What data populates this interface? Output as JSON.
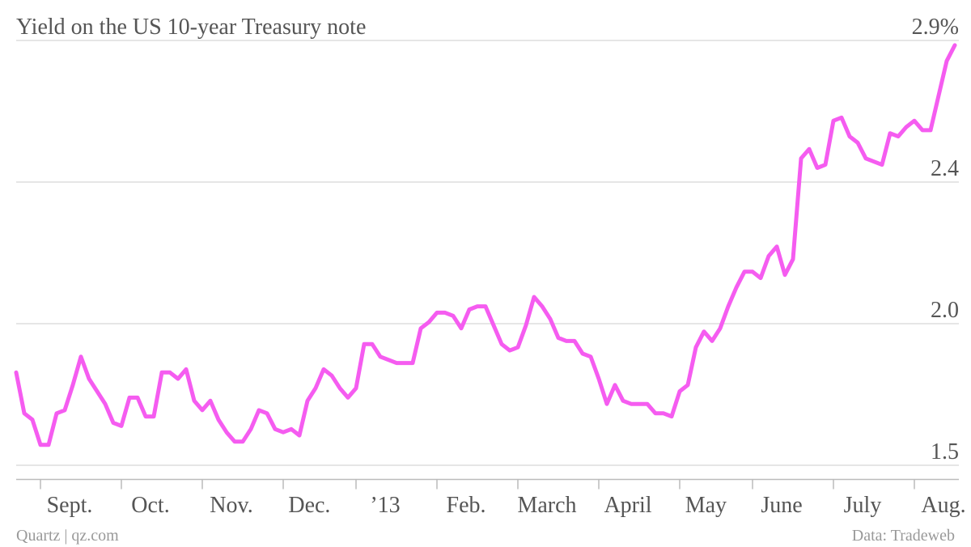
{
  "chart_data": {
    "type": "line",
    "title": "Yield on the US 10-year Treasury note",
    "credit": "Quartz | qz.com",
    "source": "Data: Tradeweb",
    "categories": [
      null,
      null,
      null,
      "Sept.",
      null,
      null,
      null,
      null,
      null,
      null,
      null,
      null,
      null,
      "Oct.",
      null,
      null,
      null,
      null,
      null,
      null,
      null,
      null,
      null,
      "Nov.",
      null,
      null,
      null,
      null,
      null,
      null,
      null,
      null,
      null,
      "Dec.",
      null,
      null,
      null,
      null,
      null,
      null,
      null,
      null,
      "’13",
      null,
      null,
      null,
      null,
      null,
      null,
      null,
      null,
      null,
      "Feb.",
      null,
      null,
      null,
      null,
      null,
      null,
      null,
      null,
      null,
      "March",
      null,
      null,
      null,
      null,
      null,
      null,
      null,
      null,
      null,
      "April",
      null,
      null,
      null,
      null,
      null,
      null,
      null,
      null,
      null,
      "May",
      null,
      null,
      null,
      null,
      null,
      null,
      null,
      null,
      "June",
      null,
      null,
      null,
      null,
      null,
      null,
      null,
      null,
      null,
      "July",
      null,
      null,
      null,
      null,
      null,
      null,
      null,
      null,
      null,
      "Aug.",
      null,
      null,
      null,
      null,
      null
    ],
    "values": [
      1.82,
      1.69,
      1.67,
      1.59,
      1.59,
      1.69,
      1.7,
      1.78,
      1.87,
      1.8,
      1.76,
      1.72,
      1.66,
      1.65,
      1.74,
      1.74,
      1.68,
      1.68,
      1.82,
      1.82,
      1.8,
      1.83,
      1.73,
      1.7,
      1.73,
      1.67,
      1.63,
      1.6,
      1.6,
      1.64,
      1.7,
      1.69,
      1.64,
      1.63,
      1.64,
      1.62,
      1.73,
      1.77,
      1.83,
      1.81,
      1.77,
      1.74,
      1.77,
      1.91,
      1.91,
      1.87,
      1.86,
      1.85,
      1.85,
      1.85,
      1.96,
      1.98,
      2.01,
      2.01,
      2.0,
      1.96,
      2.02,
      2.03,
      2.03,
      1.97,
      1.91,
      1.89,
      1.9,
      1.97,
      2.06,
      2.03,
      1.99,
      1.93,
      1.92,
      1.92,
      1.88,
      1.87,
      1.8,
      1.72,
      1.78,
      1.73,
      1.72,
      1.72,
      1.72,
      1.69,
      1.69,
      1.68,
      1.76,
      1.78,
      1.9,
      1.95,
      1.92,
      1.96,
      2.03,
      2.09,
      2.14,
      2.14,
      2.12,
      2.19,
      2.22,
      2.13,
      2.18,
      2.5,
      2.53,
      2.47,
      2.48,
      2.62,
      2.63,
      2.57,
      2.55,
      2.5,
      2.49,
      2.48,
      2.58,
      2.57,
      2.6,
      2.62,
      2.59,
      2.59,
      2.7,
      2.81,
      2.86
    ],
    "color": "#f55cf0",
    "ylim": [
      1.48,
      2.9
    ],
    "yticks": [
      {
        "value": 1.525,
        "label": "1.5"
      },
      {
        "value": 1.975,
        "label": "2.0"
      },
      {
        "value": 2.425,
        "label": "2.4"
      },
      {
        "value": 2.875,
        "label": "2.9%"
      }
    ],
    "grid": true
  }
}
